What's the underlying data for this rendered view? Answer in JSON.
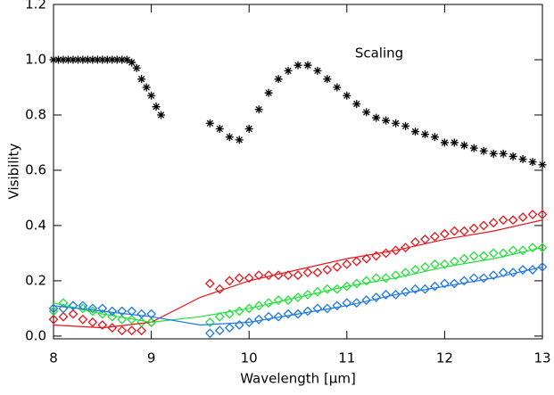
{
  "chart_data": {
    "type": "scatter",
    "xlabel": "Wavelength [μm]",
    "ylabel": "Visibility",
    "annotations": [
      {
        "text": "Scaling"
      }
    ],
    "xlim": [
      8,
      13
    ],
    "xticks": [
      8,
      9,
      10,
      11,
      12,
      13
    ],
    "ylim": [
      -0.01,
      1.2
    ],
    "yticks": [
      {
        "value": 0,
        "label": "0.0"
      },
      0.2,
      0.4,
      0.6,
      0.8,
      {
        "value": 1,
        "label": "1.0"
      },
      1.2
    ],
    "series": [
      {
        "color": "#000000",
        "mode": "markers",
        "marker": "asterisk",
        "x": [
          8.0,
          8.05,
          8.1,
          8.15,
          8.2,
          8.25,
          8.3,
          8.35,
          8.4,
          8.45,
          8.5,
          8.55,
          8.6,
          8.65,
          8.7,
          8.75,
          8.8,
          8.85,
          8.9,
          8.95,
          9.0,
          9.05,
          9.1,
          9.6,
          9.7,
          9.8,
          9.9,
          10.0,
          10.1,
          10.2,
          10.3,
          10.4,
          10.5,
          10.6,
          10.7,
          10.8,
          10.9,
          11.0,
          11.1,
          11.2,
          11.3,
          11.4,
          11.5,
          11.6,
          11.7,
          11.8,
          11.9,
          12.0,
          12.1,
          12.2,
          12.3,
          12.4,
          12.5,
          12.6,
          12.7,
          12.8,
          12.9,
          13.0
        ],
        "values": [
          1,
          1,
          1,
          1,
          1,
          1,
          1,
          1,
          1,
          1,
          1,
          1,
          1,
          1,
          1,
          1,
          0.99,
          0.97,
          0.93,
          0.9,
          0.87,
          0.83,
          0.8,
          0.77,
          0.75,
          0.72,
          0.71,
          0.75,
          0.82,
          0.88,
          0.93,
          0.96,
          0.98,
          0.98,
          0.96,
          0.93,
          0.9,
          0.87,
          0.84,
          0.81,
          0.79,
          0.78,
          0.77,
          0.76,
          0.74,
          0.73,
          0.72,
          0.7,
          0.7,
          0.69,
          0.68,
          0.67,
          0.66,
          0.66,
          0.65,
          0.64,
          0.63,
          0.62
        ]
      },
      {
        "color": "#e8141c",
        "mode": "markers",
        "marker": "diamond",
        "x": [
          8.0,
          8.1,
          8.2,
          8.3,
          8.4,
          8.5,
          8.6,
          8.7,
          8.8,
          8.9,
          9.0,
          9.6,
          9.7,
          9.8,
          9.9,
          10.0,
          10.1,
          10.2,
          10.3,
          10.4,
          10.5,
          10.6,
          10.7,
          10.8,
          10.9,
          11.0,
          11.1,
          11.2,
          11.3,
          11.4,
          11.5,
          11.6,
          11.7,
          11.8,
          11.9,
          12.0,
          12.1,
          12.2,
          12.3,
          12.4,
          12.5,
          12.6,
          12.7,
          12.8,
          12.9,
          13.0
        ],
        "values": [
          0.06,
          0.07,
          0.08,
          0.06,
          0.05,
          0.04,
          0.03,
          0.02,
          0.02,
          0.02,
          0.05,
          0.19,
          0.17,
          0.2,
          0.21,
          0.21,
          0.22,
          0.22,
          0.22,
          0.22,
          0.22,
          0.23,
          0.23,
          0.24,
          0.25,
          0.26,
          0.27,
          0.28,
          0.29,
          0.3,
          0.31,
          0.32,
          0.34,
          0.35,
          0.36,
          0.37,
          0.38,
          0.38,
          0.39,
          0.4,
          0.41,
          0.42,
          0.42,
          0.43,
          0.44,
          0.44
        ]
      },
      {
        "color": "#22e03a",
        "mode": "markers",
        "marker": "diamond",
        "x": [
          8.0,
          8.1,
          8.2,
          8.3,
          8.4,
          8.5,
          8.6,
          8.7,
          8.8,
          8.9,
          9.0,
          9.6,
          9.7,
          9.8,
          9.9,
          10.0,
          10.1,
          10.2,
          10.3,
          10.4,
          10.5,
          10.6,
          10.7,
          10.8,
          10.9,
          11.0,
          11.1,
          11.2,
          11.3,
          11.4,
          11.5,
          11.6,
          11.7,
          11.8,
          11.9,
          12.0,
          12.1,
          12.2,
          12.3,
          12.4,
          12.5,
          12.6,
          12.7,
          12.8,
          12.9,
          13.0
        ],
        "values": [
          0.09,
          0.12,
          0.11,
          0.1,
          0.09,
          0.08,
          0.07,
          0.06,
          0.06,
          0.05,
          0.05,
          0.05,
          0.07,
          0.08,
          0.09,
          0.1,
          0.11,
          0.12,
          0.13,
          0.13,
          0.14,
          0.15,
          0.16,
          0.17,
          0.17,
          0.18,
          0.19,
          0.2,
          0.21,
          0.21,
          0.22,
          0.23,
          0.24,
          0.25,
          0.26,
          0.26,
          0.27,
          0.28,
          0.29,
          0.29,
          0.3,
          0.3,
          0.31,
          0.31,
          0.32,
          0.32
        ]
      },
      {
        "color": "#1e78e6",
        "mode": "markers",
        "marker": "diamond",
        "x": [
          8.0,
          8.1,
          8.2,
          8.3,
          8.4,
          8.5,
          8.6,
          8.7,
          8.8,
          8.9,
          9.0,
          9.6,
          9.7,
          9.8,
          9.9,
          10.0,
          10.1,
          10.2,
          10.3,
          10.4,
          10.5,
          10.6,
          10.7,
          10.8,
          10.9,
          11.0,
          11.1,
          11.2,
          11.3,
          11.4,
          11.5,
          11.6,
          11.7,
          11.8,
          11.9,
          12.0,
          12.1,
          12.2,
          12.3,
          12.4,
          12.5,
          12.6,
          12.7,
          12.8,
          12.9,
          13.0
        ],
        "values": [
          0.1,
          0.1,
          0.11,
          0.11,
          0.1,
          0.1,
          0.09,
          0.09,
          0.09,
          0.08,
          0.08,
          0.01,
          0.02,
          0.03,
          0.04,
          0.05,
          0.06,
          0.07,
          0.07,
          0.08,
          0.08,
          0.09,
          0.1,
          0.1,
          0.11,
          0.12,
          0.12,
          0.13,
          0.14,
          0.15,
          0.15,
          0.16,
          0.17,
          0.17,
          0.18,
          0.19,
          0.19,
          0.2,
          0.21,
          0.21,
          0.22,
          0.23,
          0.23,
          0.24,
          0.24,
          0.25
        ]
      },
      {
        "color": "#e8141c",
        "mode": "line",
        "x": [
          8.0,
          8.5,
          9.0,
          9.5,
          10.0,
          10.5,
          11.0,
          11.5,
          12.0,
          12.5,
          13.0
        ],
        "values": [
          0.04,
          0.03,
          0.05,
          0.14,
          0.2,
          0.24,
          0.28,
          0.31,
          0.35,
          0.38,
          0.42
        ]
      },
      {
        "color": "#22e03a",
        "mode": "line",
        "x": [
          8.0,
          8.5,
          9.0,
          9.5,
          10.0,
          10.5,
          11.0,
          11.5,
          12.0,
          12.5,
          13.0
        ],
        "values": [
          0.12,
          0.08,
          0.05,
          0.07,
          0.1,
          0.14,
          0.18,
          0.21,
          0.25,
          0.28,
          0.32
        ]
      },
      {
        "color": "#1e78e6",
        "mode": "line",
        "x": [
          8.0,
          8.5,
          9.0,
          9.5,
          10.0,
          10.5,
          11.0,
          11.5,
          12.0,
          12.5,
          13.0
        ],
        "values": [
          0.11,
          0.09,
          0.07,
          0.04,
          0.05,
          0.08,
          0.11,
          0.15,
          0.18,
          0.21,
          0.25
        ]
      }
    ]
  }
}
